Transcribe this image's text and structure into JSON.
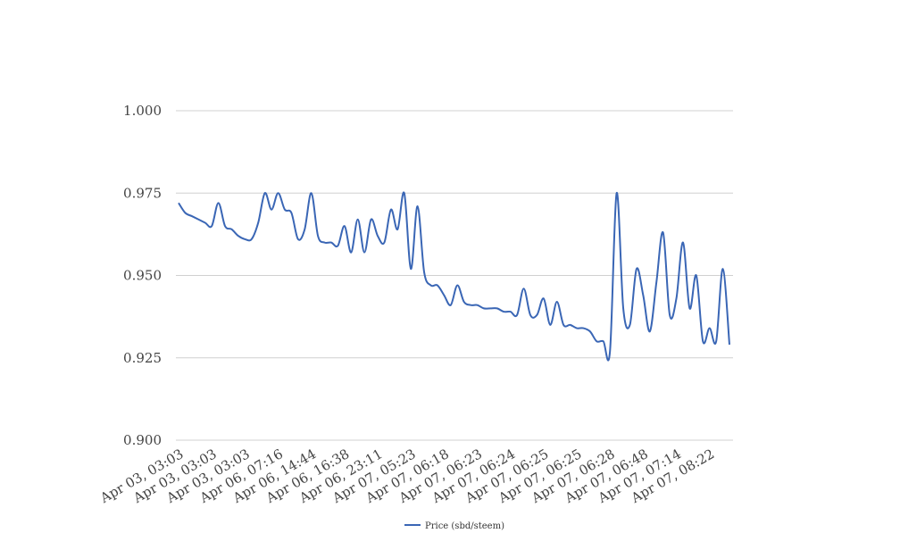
{
  "chart_data": {
    "type": "line",
    "categories": [
      "Apr 03, 03:03",
      null,
      null,
      null,
      null,
      "Apr 03, 03:03",
      null,
      null,
      null,
      null,
      "Apr 03, 03:03",
      null,
      null,
      null,
      null,
      "Apr 06, 07:16",
      null,
      null,
      null,
      null,
      "Apr 06, 14:44",
      null,
      null,
      null,
      null,
      "Apr 06, 16:38",
      null,
      null,
      null,
      null,
      "Apr 06, 23:11",
      null,
      null,
      null,
      null,
      "Apr 07, 05:23",
      null,
      null,
      null,
      null,
      "Apr 07, 06:18",
      null,
      null,
      null,
      null,
      "Apr 07, 06:23",
      null,
      null,
      null,
      null,
      "Apr 07, 06:24",
      null,
      null,
      null,
      null,
      "Apr 07, 06:25",
      null,
      null,
      null,
      null,
      "Apr 07, 06:25",
      null,
      null,
      null,
      null,
      "Apr 07, 06:28",
      null,
      null,
      null,
      null,
      "Apr 07, 06:48",
      null,
      null,
      null,
      null,
      "Apr 07, 07:14",
      null,
      null,
      null,
      null,
      "Apr 07, 08:22",
      null,
      null,
      null
    ],
    "series": [
      {
        "name": "Price (sbd/steem)",
        "color": "#3a66b5",
        "values": [
          0.972,
          0.969,
          0.968,
          0.967,
          0.966,
          0.965,
          0.972,
          0.965,
          0.964,
          0.962,
          0.961,
          0.961,
          0.966,
          0.975,
          0.97,
          0.975,
          0.97,
          0.969,
          0.961,
          0.964,
          0.975,
          0.962,
          0.96,
          0.96,
          0.959,
          0.965,
          0.957,
          0.967,
          0.957,
          0.967,
          0.962,
          0.96,
          0.97,
          0.964,
          0.975,
          0.952,
          0.971,
          0.951,
          0.947,
          0.947,
          0.944,
          0.941,
          0.947,
          0.942,
          0.941,
          0.941,
          0.94,
          0.94,
          0.94,
          0.939,
          0.939,
          0.938,
          0.946,
          0.938,
          0.938,
          0.943,
          0.935,
          0.942,
          0.935,
          0.935,
          0.934,
          0.934,
          0.933,
          0.93,
          0.93,
          0.927,
          0.975,
          0.94,
          0.935,
          0.952,
          0.944,
          0.933,
          0.948,
          0.963,
          0.938,
          0.943,
          0.96,
          0.94,
          0.95,
          0.93,
          0.934,
          0.93,
          0.952,
          0.929
        ]
      }
    ],
    "ylim": [
      0.9,
      1.0
    ],
    "yticks": [
      {
        "value": 0.9,
        "label": "0.900"
      },
      {
        "value": 0.925,
        "label": "0.925"
      },
      {
        "value": 0.95,
        "label": "0.950"
      },
      {
        "value": 0.975,
        "label": "0.975"
      },
      {
        "value": 1.0,
        "label": "1.000"
      }
    ],
    "grid": true,
    "legend": "bottom"
  }
}
